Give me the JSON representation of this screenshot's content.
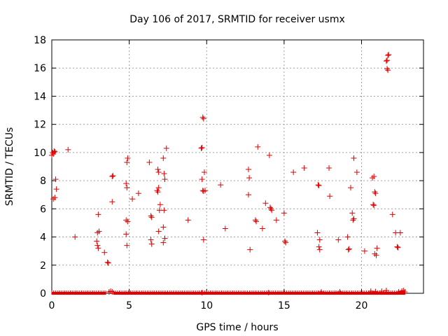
{
  "chart_data": {
    "type": "scatter",
    "title": "Day 106 of 2017, SRMTID for receiver usmx",
    "xlabel": "GPS time / hours",
    "ylabel": "SRMTID / TECUs",
    "xlim": [
      0,
      24
    ],
    "ylim": [
      0,
      18
    ],
    "xticks": [
      0,
      5,
      10,
      15,
      20
    ],
    "yticks": [
      0,
      2,
      4,
      6,
      8,
      10,
      12,
      14,
      16,
      18
    ],
    "grid": true,
    "marker": "plus",
    "color": "#e00000",
    "series": [
      {
        "points": [
          [
            0.0,
            9.8
          ],
          [
            0.05,
            10.0
          ],
          [
            0.1,
            9.9
          ],
          [
            0.15,
            10.1
          ],
          [
            0.2,
            10.05
          ],
          [
            0.1,
            6.7
          ],
          [
            0.2,
            6.8
          ],
          [
            0.25,
            8.1
          ],
          [
            0.3,
            7.4
          ],
          [
            1.05,
            10.2
          ],
          [
            1.5,
            4.0
          ],
          [
            2.9,
            3.7
          ],
          [
            2.95,
            3.4
          ],
          [
            3.0,
            3.2
          ],
          [
            2.95,
            4.3
          ],
          [
            3.05,
            4.4
          ],
          [
            3.0,
            5.6
          ],
          [
            3.4,
            2.9
          ],
          [
            3.6,
            2.2
          ],
          [
            3.65,
            2.15
          ],
          [
            3.9,
            8.3
          ],
          [
            3.95,
            8.35
          ],
          [
            3.9,
            6.5
          ],
          [
            4.8,
            7.8
          ],
          [
            4.85,
            7.5
          ],
          [
            4.9,
            9.6
          ],
          [
            4.85,
            9.3
          ],
          [
            4.8,
            5.2
          ],
          [
            4.9,
            5.1
          ],
          [
            4.8,
            4.2
          ],
          [
            4.85,
            3.4
          ],
          [
            5.2,
            6.7
          ],
          [
            5.6,
            7.1
          ],
          [
            6.3,
            9.3
          ],
          [
            6.4,
            5.5
          ],
          [
            6.45,
            5.4
          ],
          [
            6.4,
            3.8
          ],
          [
            6.45,
            3.5
          ],
          [
            6.8,
            7.3
          ],
          [
            6.85,
            7.2
          ],
          [
            6.9,
            7.5
          ],
          [
            6.85,
            8.8
          ],
          [
            6.9,
            8.6
          ],
          [
            6.95,
            5.9
          ],
          [
            7.0,
            6.3
          ],
          [
            6.9,
            4.4
          ],
          [
            7.2,
            9.6
          ],
          [
            7.25,
            8.5
          ],
          [
            7.3,
            8.1
          ],
          [
            7.25,
            5.9
          ],
          [
            7.2,
            4.7
          ],
          [
            7.3,
            3.9
          ],
          [
            7.2,
            3.6
          ],
          [
            7.4,
            10.3
          ],
          [
            8.8,
            5.2
          ],
          [
            9.65,
            10.3
          ],
          [
            9.7,
            10.35
          ],
          [
            9.75,
            12.5
          ],
          [
            9.8,
            12.4
          ],
          [
            9.7,
            8.1
          ],
          [
            9.75,
            7.3
          ],
          [
            9.8,
            7.25
          ],
          [
            9.85,
            8.6
          ],
          [
            9.9,
            7.3
          ],
          [
            9.8,
            3.8
          ],
          [
            10.9,
            7.7
          ],
          [
            11.2,
            4.6
          ],
          [
            12.7,
            8.8
          ],
          [
            12.75,
            8.2
          ],
          [
            12.7,
            7.0
          ],
          [
            12.8,
            3.1
          ],
          [
            13.15,
            5.2
          ],
          [
            13.2,
            5.1
          ],
          [
            13.3,
            10.4
          ],
          [
            13.6,
            4.6
          ],
          [
            13.8,
            6.4
          ],
          [
            14.05,
            9.8
          ],
          [
            14.1,
            6.1
          ],
          [
            14.15,
            6.0
          ],
          [
            14.2,
            5.9
          ],
          [
            14.5,
            5.2
          ],
          [
            15.0,
            5.7
          ],
          [
            15.05,
            3.7
          ],
          [
            15.1,
            3.6
          ],
          [
            15.6,
            8.6
          ],
          [
            16.3,
            8.9
          ],
          [
            17.2,
            7.7
          ],
          [
            17.25,
            7.65
          ],
          [
            17.15,
            4.3
          ],
          [
            17.3,
            3.8
          ],
          [
            17.25,
            3.3
          ],
          [
            17.3,
            3.1
          ],
          [
            17.9,
            8.9
          ],
          [
            17.95,
            6.9
          ],
          [
            18.5,
            3.8
          ],
          [
            19.1,
            4.0
          ],
          [
            19.15,
            3.1
          ],
          [
            19.2,
            3.15
          ],
          [
            19.3,
            7.5
          ],
          [
            19.4,
            5.7
          ],
          [
            19.45,
            5.2
          ],
          [
            19.5,
            5.3
          ],
          [
            19.5,
            9.6
          ],
          [
            19.7,
            8.6
          ],
          [
            20.2,
            3.0
          ],
          [
            20.7,
            8.2
          ],
          [
            20.8,
            8.3
          ],
          [
            20.75,
            6.3
          ],
          [
            20.8,
            6.25
          ],
          [
            20.85,
            7.2
          ],
          [
            20.9,
            7.1
          ],
          [
            20.85,
            2.8
          ],
          [
            20.95,
            2.7
          ],
          [
            21.0,
            3.2
          ],
          [
            21.6,
            16.5
          ],
          [
            21.65,
            16.55
          ],
          [
            21.7,
            16.9
          ],
          [
            21.75,
            16.95
          ],
          [
            21.65,
            15.95
          ],
          [
            21.7,
            15.85
          ],
          [
            22.0,
            5.6
          ],
          [
            22.2,
            4.3
          ],
          [
            22.3,
            3.3
          ],
          [
            22.35,
            3.25
          ],
          [
            22.5,
            4.3
          ],
          [
            3.7,
            0.1
          ],
          [
            3.8,
            0.15
          ],
          [
            3.9,
            0.1
          ],
          [
            9.7,
            0.05
          ],
          [
            14.0,
            0.05
          ],
          [
            17.4,
            0.1
          ],
          [
            18.6,
            0.1
          ],
          [
            20.6,
            0.15
          ],
          [
            20.9,
            0.12
          ],
          [
            21.3,
            0.15
          ],
          [
            21.6,
            0.2
          ],
          [
            22.4,
            0.1
          ],
          [
            22.6,
            0.15
          ],
          [
            22.7,
            0.2
          ],
          [
            22.8,
            0.1
          ]
        ],
        "baseline_segments": [
          [
            0.0,
            3.5
          ],
          [
            4.0,
            22.8
          ]
        ],
        "baseline_value": 0
      }
    ]
  }
}
